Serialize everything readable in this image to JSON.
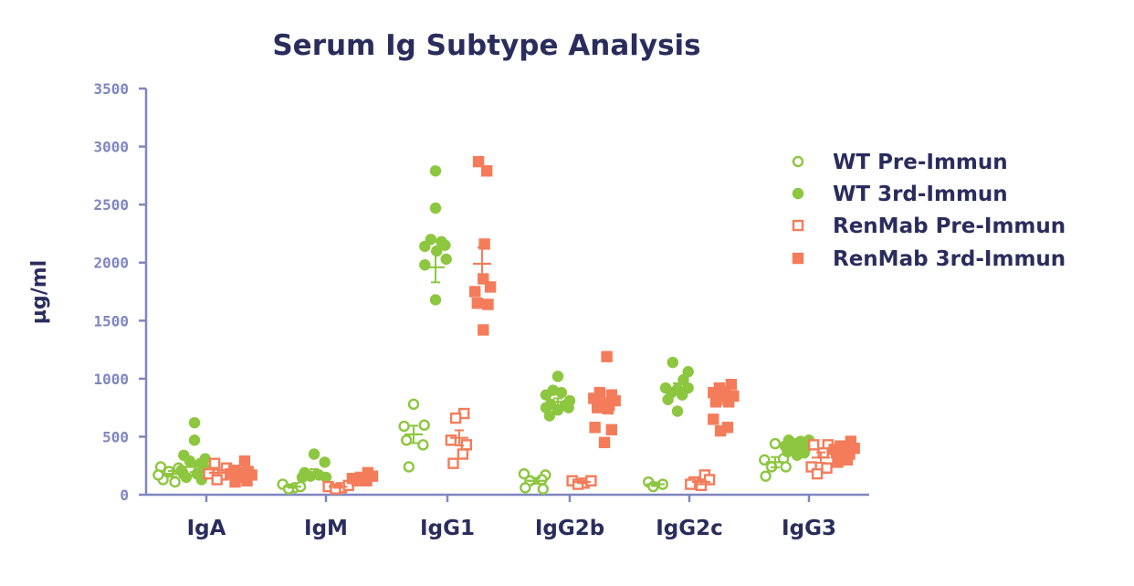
{
  "chart_data": {
    "type": "scatter",
    "title": "Serum Ig Subtype Analysis",
    "xlabel": "",
    "ylabel": "µg/ml",
    "ylim": [
      0,
      3500
    ],
    "yticks": [
      0,
      500,
      1000,
      1500,
      2000,
      2500,
      3000,
      3500
    ],
    "categories": [
      "IgA",
      "IgM",
      "IgG1",
      "IgG2b",
      "IgG2c",
      "IgG3"
    ],
    "legend_position": "right",
    "colors": {
      "wt": "#8dc63f",
      "renmab": "#f47c5a",
      "axis": "#7f86c0",
      "text": "#2a2d5c"
    },
    "series": [
      {
        "name": "WT Pre-Immun",
        "marker": "circle-open",
        "color": "#8dc63f",
        "points": [
          [
            [
              -1,
              240
            ],
            [
              -0.3,
              200
            ],
            [
              0.5,
              230
            ],
            [
              -0.8,
              130
            ],
            [
              0.2,
              110
            ],
            [
              -1.2,
              170
            ],
            [
              0.9,
              180
            ]
          ],
          [
            [
              -0.8,
              90
            ],
            [
              0.2,
              60
            ],
            [
              0.7,
              70
            ],
            [
              -0.3,
              50
            ]
          ],
          [
            [
              0,
              780
            ],
            [
              -0.8,
              590
            ],
            [
              0.9,
              600
            ],
            [
              -0.6,
              470
            ],
            [
              0.8,
              430
            ],
            [
              -0.4,
              240
            ]
          ],
          [
            [
              -1,
              180
            ],
            [
              0.8,
              170
            ],
            [
              -0.5,
              120
            ],
            [
              0.5,
              130
            ],
            [
              -0.9,
              60
            ],
            [
              0.6,
              50
            ]
          ],
          [
            [
              -0.6,
              110
            ],
            [
              0.6,
              90
            ],
            [
              -0.2,
              70
            ]
          ],
          [
            [
              0,
              440
            ],
            [
              -0.9,
              300
            ],
            [
              0.7,
              310
            ],
            [
              -0.3,
              240
            ],
            [
              0.9,
              240
            ],
            [
              -0.8,
              160
            ]
          ]
        ],
        "mean": [
          180,
          70,
          520,
          120,
          90,
          280
        ],
        "sem": [
          25,
          10,
          75,
          25,
          15,
          45
        ]
      },
      {
        "name": "WT 3rd-Immun",
        "marker": "circle-filled",
        "color": "#8dc63f",
        "points": [
          [
            [
              0,
              620
            ],
            [
              0,
              470
            ],
            [
              -0.9,
              340
            ],
            [
              0.9,
              310
            ],
            [
              -0.4,
              290
            ],
            [
              0.5,
              270
            ],
            [
              -1.1,
              210
            ],
            [
              1,
              220
            ],
            [
              0.2,
              180
            ],
            [
              -0.7,
              150
            ],
            [
              0.6,
              130
            ]
          ],
          [
            [
              0,
              350
            ],
            [
              0.9,
              280
            ],
            [
              -0.8,
              190
            ],
            [
              -0.3,
              160
            ],
            [
              0.4,
              170
            ],
            [
              1,
              150
            ],
            [
              -1,
              150
            ]
          ],
          [
            [
              0,
              2790
            ],
            [
              0,
              2470
            ],
            [
              -0.4,
              2200
            ],
            [
              0.5,
              2180
            ],
            [
              -0.9,
              2140
            ],
            [
              0.8,
              2150
            ],
            [
              0.1,
              2100
            ],
            [
              0.9,
              2030
            ],
            [
              -0.9,
              1980
            ],
            [
              0,
              1680
            ]
          ],
          [
            [
              0,
              1020
            ],
            [
              -0.4,
              900
            ],
            [
              0.3,
              880
            ],
            [
              -1,
              860
            ],
            [
              1,
              810
            ],
            [
              -0.6,
              780
            ],
            [
              0.6,
              770
            ],
            [
              -1,
              750
            ],
            [
              0.9,
              750
            ],
            [
              0,
              730
            ],
            [
              -0.7,
              680
            ]
          ],
          [
            [
              -0.4,
              1140
            ],
            [
              0.9,
              1060
            ],
            [
              0.5,
              990
            ],
            [
              -1,
              920
            ],
            [
              0,
              910
            ],
            [
              0.9,
              920
            ],
            [
              -0.5,
              880
            ],
            [
              0.4,
              860
            ],
            [
              -0.8,
              820
            ],
            [
              0,
              720
            ]
          ],
          [
            [
              -0.7,
              470
            ],
            [
              0.3,
              460
            ],
            [
              1,
              470
            ],
            [
              -0.2,
              440
            ],
            [
              0.5,
              430
            ],
            [
              -1,
              420
            ],
            [
              0.8,
              410
            ],
            [
              -0.5,
              400
            ],
            [
              0.2,
              390
            ],
            [
              -0.8,
              370
            ],
            [
              0.6,
              360
            ],
            [
              0,
              340
            ]
          ]
        ],
        "mean": [
          240,
          190,
          1960,
          800,
          920,
          410
        ],
        "sem": [
          45,
          30,
          130,
          30,
          40,
          15
        ]
      },
      {
        "name": "RenMab Pre-Immun",
        "marker": "square-open",
        "color": "#f47c5a",
        "points": [
          [
            [
              -0.3,
              270
            ],
            [
              0.7,
              230
            ],
            [
              -0.8,
              180
            ],
            [
              0.4,
              170
            ],
            [
              -0.1,
              130
            ]
          ],
          [
            [
              -0.8,
              70
            ],
            [
              0.3,
              60
            ],
            [
              0.9,
              80
            ],
            [
              -0.2,
              50
            ]
          ],
          [
            [
              0.4,
              700
            ],
            [
              -0.3,
              660
            ],
            [
              0.6,
              430
            ],
            [
              -0.7,
              470
            ],
            [
              0.3,
              350
            ],
            [
              -0.5,
              270
            ]
          ],
          [
            [
              -0.8,
              120
            ],
            [
              0.2,
              100
            ],
            [
              0.8,
              120
            ],
            [
              -0.3,
              90
            ]
          ],
          [
            [
              0.3,
              170
            ],
            [
              -0.6,
              110
            ],
            [
              0.7,
              130
            ],
            [
              0,
              80
            ],
            [
              -0.9,
              90
            ]
          ],
          [
            [
              -0.6,
              430
            ],
            [
              0.6,
              430
            ],
            [
              0.2,
              360
            ],
            [
              -0.8,
              240
            ],
            [
              0.5,
              230
            ],
            [
              -0.3,
              180
            ]
          ]
        ],
        "mean": [
          190,
          70,
          490,
          110,
          110,
          320
        ],
        "sem": [
          25,
          10,
          65,
          10,
          20,
          45
        ]
      },
      {
        "name": "RenMab 3rd-Immun",
        "marker": "square-filled",
        "color": "#f47c5a",
        "points": [
          [
            [
              0.3,
              290
            ],
            [
              -0.6,
              210
            ],
            [
              0.6,
              200
            ],
            [
              0,
              190
            ],
            [
              -0.9,
              180
            ],
            [
              0.9,
              170
            ],
            [
              -0.3,
              150
            ],
            [
              0.5,
              120
            ],
            [
              -0.5,
              110
            ]
          ],
          [
            [
              0.6,
              190
            ],
            [
              -0.7,
              140
            ],
            [
              0,
              150
            ],
            [
              1,
              160
            ],
            [
              -0.3,
              120
            ],
            [
              0.5,
              120
            ]
          ],
          [
            [
              -0.3,
              2870
            ],
            [
              0.4,
              2790
            ],
            [
              0.2,
              2160
            ],
            [
              0.1,
              1860
            ],
            [
              -0.6,
              1750
            ],
            [
              0.7,
              1790
            ],
            [
              -0.4,
              1650
            ],
            [
              0.5,
              1640
            ],
            [
              0.1,
              1420
            ]
          ],
          [
            [
              0.2,
              1190
            ],
            [
              -0.4,
              880
            ],
            [
              0.6,
              860
            ],
            [
              -0.9,
              830
            ],
            [
              0.9,
              810
            ],
            [
              -0.2,
              790
            ],
            [
              0.4,
              770
            ],
            [
              -0.6,
              750
            ],
            [
              0.3,
              740
            ],
            [
              -0.8,
              580
            ],
            [
              0.6,
              560
            ],
            [
              0,
              450
            ]
          ],
          [
            [
              0.6,
              950
            ],
            [
              -0.4,
              920
            ],
            [
              0.1,
              890
            ],
            [
              -0.9,
              880
            ],
            [
              0.8,
              850
            ],
            [
              -0.3,
              840
            ],
            [
              0.4,
              800
            ],
            [
              -0.7,
              800
            ],
            [
              -0.9,
              650
            ],
            [
              0.3,
              580
            ],
            [
              -0.3,
              550
            ]
          ],
          [
            [
              0.6,
              460
            ],
            [
              -0.3,
              420
            ],
            [
              0.2,
              410
            ],
            [
              -0.8,
              390
            ],
            [
              0.9,
              400
            ],
            [
              0,
              380
            ],
            [
              -0.6,
              360
            ],
            [
              0.5,
              350
            ],
            [
              -0.2,
              330
            ],
            [
              0.3,
              300
            ],
            [
              -0.5,
              280
            ]
          ]
        ],
        "mean": [
          180,
          145,
          1990,
          780,
          820,
          375
        ],
        "sem": [
          20,
          10,
          140,
          50,
          40,
          20
        ]
      }
    ]
  }
}
